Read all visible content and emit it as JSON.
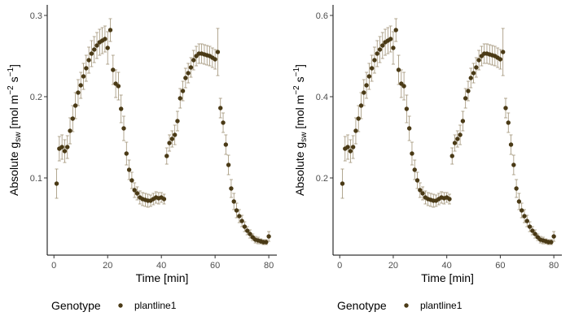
{
  "colors": {
    "point": "#4a3a16",
    "errorbar": "#a09276",
    "axis": "#000000",
    "tick_text": "#4d4d4d"
  },
  "legend": {
    "title": "Genotype",
    "entries": [
      "plantline1"
    ],
    "position": "bottom-left"
  },
  "chart_data": [
    {
      "type": "scatter",
      "panel": "left",
      "xlabel": "Time [min]",
      "ylabel": "Absolute gsw [mol m-2 s-1]",
      "ylabel_parts": {
        "main": "Absolute g",
        "sub": "sw",
        "unit_open": " [mol m",
        "exp1": "−2",
        "unit_mid": " s",
        "exp2": "−1",
        "unit_close": "]"
      },
      "xlim": [
        -2.5,
        83
      ],
      "ylim": [
        0.005,
        0.313
      ],
      "xticks": [
        0,
        20,
        40,
        60,
        80
      ],
      "xtick_labels": [
        "0",
        "20",
        "40",
        "60",
        "80"
      ],
      "yticks": [
        0.1,
        0.2,
        0.3
      ],
      "ytick_labels": [
        "0.1",
        "0.2",
        "0.3"
      ],
      "grid": false,
      "series": [
        {
          "name": "plantline1",
          "x": [
            1,
            2,
            3,
            4,
            5,
            6,
            7,
            8,
            9,
            10,
            11,
            12,
            13,
            14,
            15,
            16,
            17,
            18,
            19,
            20,
            21,
            22,
            23,
            24,
            25,
            26,
            27,
            28,
            29,
            30,
            31,
            32,
            33,
            34,
            35,
            36,
            37,
            38,
            39,
            40,
            41,
            42,
            43,
            44,
            45,
            46,
            47,
            48,
            49,
            50,
            51,
            52,
            53,
            54,
            55,
            56,
            57,
            58,
            59,
            60,
            61,
            62,
            63,
            64,
            65,
            66,
            67,
            68,
            69,
            70,
            71,
            72,
            73,
            74,
            75,
            76,
            77,
            78,
            79,
            80
          ],
          "y": [
            0.093,
            0.136,
            0.138,
            0.133,
            0.138,
            0.158,
            0.173,
            0.189,
            0.205,
            0.214,
            0.225,
            0.235,
            0.245,
            0.253,
            0.258,
            0.263,
            0.267,
            0.269,
            0.271,
            0.26,
            0.282,
            0.233,
            0.216,
            0.213,
            0.185,
            0.161,
            0.13,
            0.11,
            0.097,
            0.085,
            0.081,
            0.076,
            0.074,
            0.073,
            0.072,
            0.072,
            0.074,
            0.076,
            0.075,
            0.076,
            0.074,
            0.127,
            0.143,
            0.148,
            0.153,
            0.17,
            0.198,
            0.207,
            0.223,
            0.229,
            0.236,
            0.245,
            0.25,
            0.253,
            0.253,
            0.252,
            0.251,
            0.25,
            0.248,
            0.246,
            0.255,
            0.186,
            0.168,
            0.141,
            0.116,
            0.087,
            0.071,
            0.06,
            0.053,
            0.047,
            0.04,
            0.035,
            0.031,
            0.027,
            0.024,
            0.023,
            0.022,
            0.021,
            0.021,
            0.028
          ],
          "err": [
            0.018,
            0.015,
            0.015,
            0.014,
            0.014,
            0.016,
            0.016,
            0.016,
            0.016,
            0.016,
            0.016,
            0.016,
            0.016,
            0.016,
            0.016,
            0.016,
            0.016,
            0.016,
            0.016,
            0.02,
            0.014,
            0.018,
            0.017,
            0.017,
            0.017,
            0.015,
            0.014,
            0.012,
            0.01,
            0.009,
            0.008,
            0.008,
            0.008,
            0.008,
            0.008,
            0.007,
            0.007,
            0.007,
            0.007,
            0.006,
            0.006,
            0.01,
            0.01,
            0.01,
            0.012,
            0.012,
            0.012,
            0.012,
            0.012,
            0.012,
            0.012,
            0.012,
            0.012,
            0.012,
            0.012,
            0.012,
            0.012,
            0.012,
            0.012,
            0.012,
            0.029,
            0.012,
            0.012,
            0.012,
            0.012,
            0.011,
            0.01,
            0.009,
            0.008,
            0.007,
            0.006,
            0.005,
            0.005,
            0.004,
            0.004,
            0.004,
            0.003,
            0.003,
            0.003,
            0.006
          ]
        }
      ]
    },
    {
      "type": "scatter",
      "panel": "right",
      "xlabel": "Time [min]",
      "ylabel": "Absolute gsw [mol m-2 s-1]",
      "ylabel_parts": {
        "main": "Absolute g",
        "sub": "sw",
        "unit_open": " [mol m",
        "exp1": "−2",
        "unit_mid": " s",
        "exp2": "−1",
        "unit_close": "]"
      },
      "xlim": [
        -2.5,
        83
      ],
      "ylim": [
        0.01,
        0.626
      ],
      "xticks": [
        0,
        20,
        40,
        60,
        80
      ],
      "xtick_labels": [
        "0",
        "20",
        "40",
        "60",
        "80"
      ],
      "yticks": [
        0.2,
        0.4,
        0.6
      ],
      "ytick_labels": [
        "0.2",
        "0.4",
        "0.6"
      ],
      "grid": false,
      "series": [
        {
          "name": "plantline1",
          "x": [
            1,
            2,
            3,
            4,
            5,
            6,
            7,
            8,
            9,
            10,
            11,
            12,
            13,
            14,
            15,
            16,
            17,
            18,
            19,
            20,
            21,
            22,
            23,
            24,
            25,
            26,
            27,
            28,
            29,
            30,
            31,
            32,
            33,
            34,
            35,
            36,
            37,
            38,
            39,
            40,
            41,
            42,
            43,
            44,
            45,
            46,
            47,
            48,
            49,
            50,
            51,
            52,
            53,
            54,
            55,
            56,
            57,
            58,
            59,
            60,
            61,
            62,
            63,
            64,
            65,
            66,
            67,
            68,
            69,
            70,
            71,
            72,
            73,
            74,
            75,
            76,
            77,
            78,
            79,
            80
          ],
          "y": [
            0.186,
            0.272,
            0.276,
            0.266,
            0.276,
            0.316,
            0.346,
            0.378,
            0.41,
            0.428,
            0.45,
            0.47,
            0.49,
            0.506,
            0.516,
            0.526,
            0.534,
            0.538,
            0.542,
            0.52,
            0.564,
            0.466,
            0.432,
            0.426,
            0.37,
            0.322,
            0.26,
            0.22,
            0.194,
            0.17,
            0.162,
            0.152,
            0.148,
            0.146,
            0.144,
            0.144,
            0.148,
            0.152,
            0.15,
            0.152,
            0.148,
            0.254,
            0.286,
            0.296,
            0.306,
            0.34,
            0.396,
            0.414,
            0.446,
            0.458,
            0.472,
            0.49,
            0.5,
            0.506,
            0.506,
            0.504,
            0.502,
            0.5,
            0.496,
            0.492,
            0.51,
            0.372,
            0.336,
            0.282,
            0.232,
            0.174,
            0.142,
            0.12,
            0.106,
            0.094,
            0.08,
            0.07,
            0.062,
            0.054,
            0.048,
            0.046,
            0.044,
            0.042,
            0.042,
            0.056
          ],
          "err": [
            0.036,
            0.03,
            0.03,
            0.028,
            0.028,
            0.032,
            0.032,
            0.032,
            0.032,
            0.032,
            0.032,
            0.032,
            0.032,
            0.032,
            0.032,
            0.032,
            0.032,
            0.032,
            0.032,
            0.04,
            0.028,
            0.036,
            0.034,
            0.034,
            0.034,
            0.03,
            0.028,
            0.024,
            0.02,
            0.018,
            0.016,
            0.016,
            0.016,
            0.016,
            0.016,
            0.014,
            0.014,
            0.014,
            0.014,
            0.012,
            0.012,
            0.02,
            0.02,
            0.02,
            0.024,
            0.024,
            0.024,
            0.024,
            0.024,
            0.024,
            0.024,
            0.024,
            0.024,
            0.024,
            0.024,
            0.024,
            0.024,
            0.024,
            0.024,
            0.024,
            0.058,
            0.024,
            0.024,
            0.024,
            0.024,
            0.022,
            0.02,
            0.018,
            0.016,
            0.014,
            0.012,
            0.01,
            0.01,
            0.008,
            0.008,
            0.008,
            0.006,
            0.006,
            0.006,
            0.012
          ]
        }
      ]
    }
  ]
}
